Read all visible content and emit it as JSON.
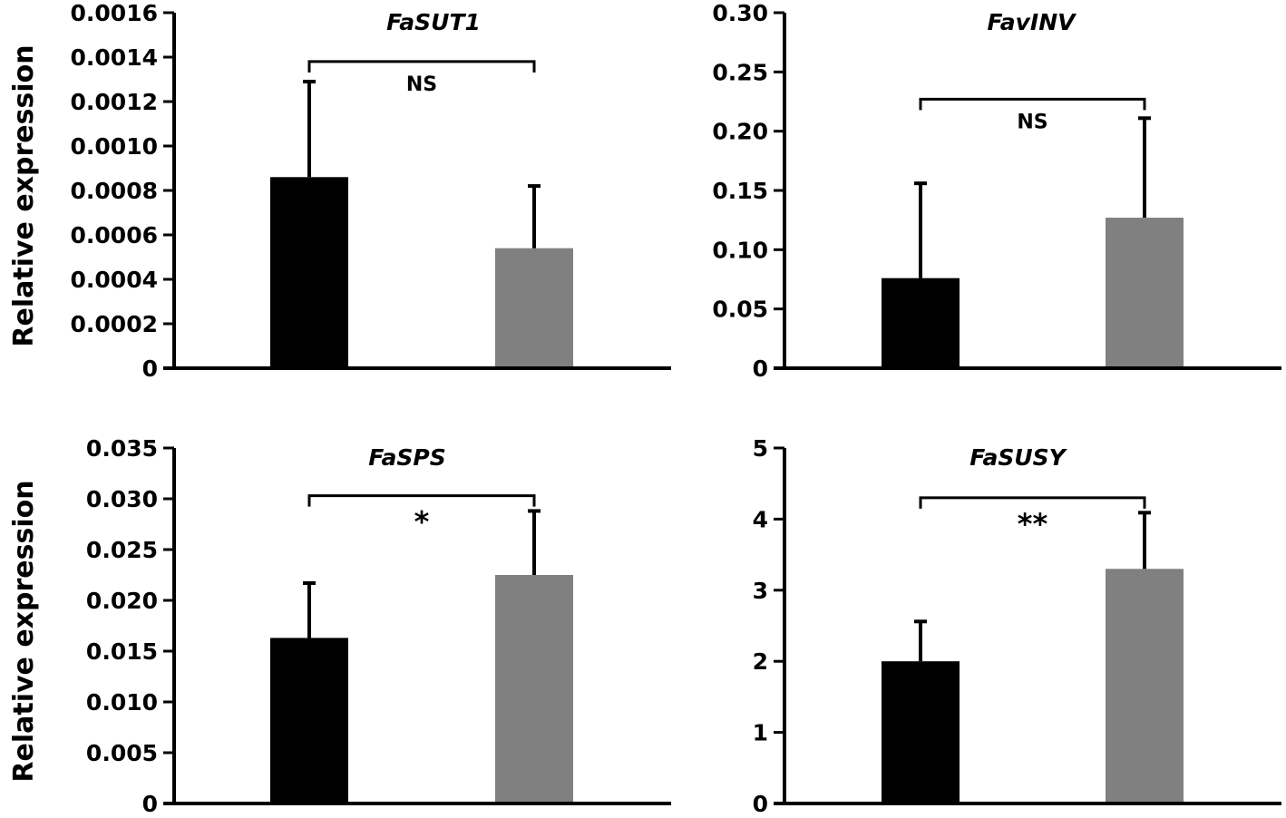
{
  "chart_data": [
    {
      "type": "bar",
      "title": "FaSUT1",
      "ylabel": "Relative expression",
      "xlabel": "",
      "ylim": [
        0,
        0.0016
      ],
      "yticks": [
        "0",
        "0.0002",
        "0.0004",
        "0.0006",
        "0.0008",
        "0.0010",
        "0.0012",
        "0.0014",
        "0.0016"
      ],
      "categories": [
        "",
        ""
      ],
      "values": [
        0.00086,
        0.00054
      ],
      "errors": [
        0.00043,
        0.00028
      ],
      "bar_colors": [
        "#000000",
        "#808080"
      ],
      "significance": "NS",
      "bracket_y": 0.00138
    },
    {
      "type": "bar",
      "title": "FavINV",
      "ylabel": "",
      "xlabel": "",
      "ylim": [
        0,
        0.3
      ],
      "yticks": [
        "0",
        "0.05",
        "0.10",
        "0.15",
        "0.20",
        "0.25",
        "0.30"
      ],
      "categories": [
        "",
        ""
      ],
      "values": [
        0.076,
        0.127
      ],
      "errors": [
        0.08,
        0.084
      ],
      "bar_colors": [
        "#000000",
        "#808080"
      ],
      "significance": "NS",
      "bracket_y": 0.227
    },
    {
      "type": "bar",
      "title": "FaSPS",
      "ylabel": "Relative expression",
      "xlabel": "",
      "ylim": [
        0,
        0.035
      ],
      "yticks": [
        "0",
        "0.005",
        "0.010",
        "0.015",
        "0.020",
        "0.025",
        "0.030",
        "0.035"
      ],
      "categories": [
        "",
        ""
      ],
      "values": [
        0.0163,
        0.0225
      ],
      "errors": [
        0.0054,
        0.0063
      ],
      "bar_colors": [
        "#000000",
        "#808080"
      ],
      "significance": "*",
      "bracket_y": 0.0303
    },
    {
      "type": "bar",
      "title": "FaSUSY",
      "ylabel": "",
      "xlabel": "",
      "ylim": [
        0,
        5
      ],
      "yticks": [
        "0",
        "1",
        "2",
        "3",
        "4",
        "5"
      ],
      "categories": [
        "",
        ""
      ],
      "values": [
        2.0,
        3.3
      ],
      "errors": [
        0.56,
        0.79
      ],
      "bar_colors": [
        "#000000",
        "#808080"
      ],
      "significance": "**",
      "bracket_y": 4.3
    }
  ]
}
